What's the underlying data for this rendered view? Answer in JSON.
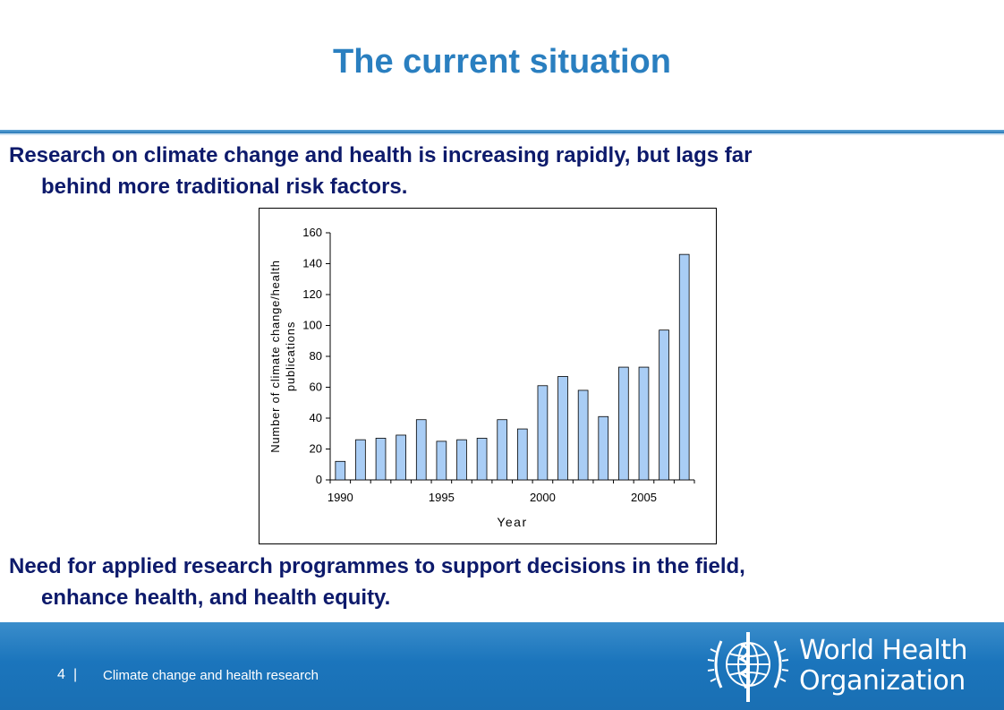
{
  "slide": {
    "title": "The current situation",
    "bullet_1_line_1": "Research on climate change and health is increasing rapidly, but lags far",
    "bullet_1_line_2": "behind more traditional risk factors.",
    "bullet_2_line_1": "Need for applied research programmes to support decisions in the field,",
    "bullet_2_line_2": "enhance health, and health equity."
  },
  "footer": {
    "page_number": "4",
    "separator": "|",
    "text": "Climate change and health research",
    "org_name_line_1": "World Health",
    "org_name_line_2": "Organization"
  },
  "colors": {
    "title": "#2a7fc0",
    "body_text": "#0d1a6b",
    "footer_bg": "#1b75bc",
    "bar_fill": "#a9cdf5"
  },
  "chart_data": {
    "type": "bar",
    "title": "",
    "xlabel": "Year",
    "ylabel": "Number of climate change/health publications",
    "ylabel_lines": [
      "Number of climate change/health",
      "publications"
    ],
    "x": [
      1990,
      1991,
      1992,
      1993,
      1994,
      1995,
      1996,
      1997,
      1998,
      1999,
      2000,
      2001,
      2002,
      2003,
      2004,
      2005,
      2006,
      2007
    ],
    "values": [
      12,
      26,
      27,
      29,
      39,
      25,
      26,
      27,
      39,
      33,
      61,
      67,
      58,
      41,
      73,
      73,
      97,
      146
    ],
    "xticks": [
      "1990",
      "1995",
      "2000",
      "2005"
    ],
    "yticks": [
      "0",
      "20",
      "40",
      "60",
      "80",
      "100",
      "120",
      "140",
      "160"
    ],
    "ylim": [
      0,
      160
    ],
    "grid": false,
    "legend": "none"
  }
}
